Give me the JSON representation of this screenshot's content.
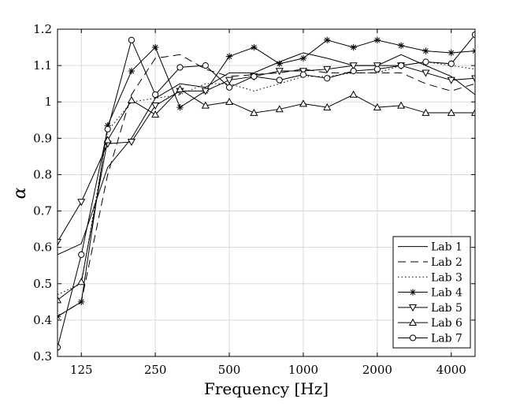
{
  "chart_data": {
    "type": "line",
    "xlabel": "Frequency [Hz]",
    "ylabel": "α",
    "xscale": "log",
    "xlim": [
      100,
      5000
    ],
    "ylim": [
      0.3,
      1.2
    ],
    "xticks": [
      125,
      250,
      500,
      1000,
      2000,
      4000
    ],
    "xtick_labels": [
      "125",
      "250",
      "500",
      "1000",
      "2000",
      "4000"
    ],
    "yticks": [
      0.3,
      0.4,
      0.5,
      0.6,
      0.7,
      0.8,
      0.9,
      1.0,
      1.1,
      1.2
    ],
    "ytick_labels": [
      "0.3",
      "0.4",
      "0.5",
      "0.6",
      "0.7",
      "0.8",
      "0.9",
      "1",
      "1.1",
      "1.2"
    ],
    "grid": true,
    "legend_position": "bottom-right",
    "x": [
      100,
      125,
      160,
      200,
      250,
      315,
      400,
      500,
      630,
      800,
      1000,
      1250,
      1600,
      2000,
      2500,
      3150,
      4000,
      5000
    ],
    "series": [
      {
        "name": "Lab 1",
        "style": "solid",
        "marker": "none",
        "values": [
          0.58,
          0.61,
          0.82,
          0.9,
          1.01,
          1.05,
          1.04,
          1.08,
          1.08,
          1.11,
          1.135,
          1.12,
          1.1,
          1.1,
          1.13,
          1.1,
          1.07,
          1.02
        ]
      },
      {
        "name": "Lab 2",
        "style": "dashed",
        "marker": "none",
        "values": [
          0.41,
          0.45,
          0.8,
          1.02,
          1.12,
          1.13,
          1.09,
          1.07,
          1.075,
          1.08,
          1.09,
          1.08,
          1.08,
          1.08,
          1.08,
          1.05,
          1.03,
          1.05
        ]
      },
      {
        "name": "Lab 3",
        "style": "dotted",
        "marker": "none",
        "values": [
          0.47,
          0.5,
          0.92,
          1.0,
          1.01,
          1.02,
          1.05,
          1.05,
          1.03,
          1.05,
          1.07,
          1.07,
          1.08,
          1.08,
          1.1,
          1.11,
          1.1,
          1.09
        ]
      },
      {
        "name": "Lab 4",
        "style": "solid",
        "marker": "asterisk",
        "values": [
          0.41,
          0.45,
          0.935,
          1.085,
          1.15,
          0.985,
          1.03,
          1.125,
          1.15,
          1.105,
          1.12,
          1.17,
          1.15,
          1.17,
          1.155,
          1.14,
          1.135,
          1.14
        ]
      },
      {
        "name": "Lab 5",
        "style": "solid",
        "marker": "triangle-down",
        "values": [
          0.615,
          0.725,
          0.885,
          0.89,
          0.99,
          1.03,
          1.03,
          1.06,
          1.07,
          1.085,
          1.085,
          1.09,
          1.1,
          1.1,
          1.1,
          1.08,
          1.06,
          1.065
        ]
      },
      {
        "name": "Lab 6",
        "style": "solid",
        "marker": "triangle-up",
        "values": [
          0.455,
          0.505,
          0.895,
          1.005,
          0.965,
          1.035,
          0.99,
          1.0,
          0.97,
          0.98,
          0.995,
          0.985,
          1.02,
          0.985,
          0.99,
          0.97,
          0.97,
          0.97
        ]
      },
      {
        "name": "Lab 7",
        "style": "solid",
        "marker": "circle",
        "values": [
          0.325,
          0.58,
          0.925,
          1.17,
          1.02,
          1.095,
          1.1,
          1.04,
          1.07,
          1.06,
          1.075,
          1.065,
          1.085,
          1.09,
          1.1,
          1.11,
          1.105,
          1.185
        ]
      }
    ]
  }
}
